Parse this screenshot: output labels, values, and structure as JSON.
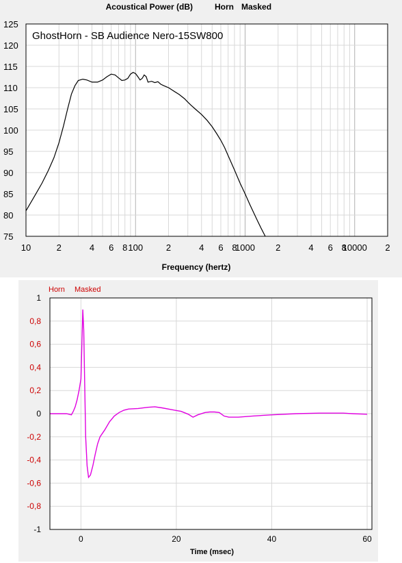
{
  "chart_data": [
    {
      "type": "line",
      "title": "Acoustical Power (dB)",
      "title_tags": [
        "Horn",
        "Masked"
      ],
      "annotation": "GhostHorn - SB Audience Nero-15SW800",
      "xlabel": "Frequency (hertz)",
      "ylabel": "",
      "x_scale": "log",
      "xlim": [
        10,
        20000
      ],
      "ylim": [
        75,
        125
      ],
      "grid": true,
      "x_tick_labels": [
        {
          "x": 10,
          "label": "10"
        },
        {
          "x": 20,
          "label": "2"
        },
        {
          "x": 40,
          "label": "4"
        },
        {
          "x": 60,
          "label": "6"
        },
        {
          "x": 80,
          "label": "8"
        },
        {
          "x": 100,
          "label": "100"
        },
        {
          "x": 200,
          "label": "2"
        },
        {
          "x": 400,
          "label": "4"
        },
        {
          "x": 600,
          "label": "6"
        },
        {
          "x": 800,
          "label": "8"
        },
        {
          "x": 1000,
          "label": "1000"
        },
        {
          "x": 2000,
          "label": "2"
        },
        {
          "x": 4000,
          "label": "4"
        },
        {
          "x": 6000,
          "label": "6"
        },
        {
          "x": 8000,
          "label": "8"
        },
        {
          "x": 10000,
          "label": "10000"
        },
        {
          "x": 20000,
          "label": "2"
        }
      ],
      "y_ticks": [
        75,
        80,
        85,
        90,
        95,
        100,
        105,
        110,
        115,
        120,
        125
      ],
      "line_color": "#000000",
      "series": [
        {
          "x": [
            10,
            12,
            14,
            16,
            18,
            20,
            22,
            24,
            26,
            28,
            30,
            33,
            36,
            40,
            45,
            50,
            55,
            60,
            65,
            70,
            75,
            80,
            85,
            90,
            95,
            100,
            105,
            110,
            115,
            120,
            125,
            130,
            140,
            150,
            160,
            170,
            180,
            200,
            220,
            250,
            280,
            300,
            320,
            350,
            400,
            450,
            500,
            550,
            600,
            650,
            700,
            800,
            900,
            1000,
            1100,
            1200,
            1300,
            1400,
            1500,
            1600
          ],
          "y": [
            81,
            84.5,
            87.5,
            90.5,
            93.5,
            97,
            101,
            105,
            108.5,
            110.5,
            111.7,
            112,
            111.8,
            111.3,
            111.3,
            111.8,
            112.6,
            113.2,
            113,
            112.3,
            111.7,
            111.8,
            112.2,
            113.2,
            113.6,
            113.3,
            112.6,
            111.8,
            112.2,
            113,
            112.6,
            111.3,
            111.5,
            111.2,
            111.4,
            110.8,
            110.5,
            110,
            109.3,
            108.4,
            107.4,
            106.6,
            105.9,
            105,
            103.7,
            102.3,
            100.8,
            99.2,
            97.6,
            95.9,
            94,
            90.6,
            87.5,
            85,
            82.6,
            80.5,
            78.6,
            76.9,
            75.4,
            74
          ]
        }
      ]
    },
    {
      "type": "line",
      "title": "",
      "title_tags": [
        "Horn",
        "Masked"
      ],
      "xlabel": "Time (msec)",
      "ylabel": "",
      "xlim": [
        -6.5,
        61
      ],
      "ylim": [
        -1,
        1
      ],
      "grid": true,
      "x_ticks": [
        0,
        20,
        40,
        60
      ],
      "y_tick_labels": [
        {
          "y": 1,
          "label": "1"
        },
        {
          "y": 0.8,
          "label": "0,8"
        },
        {
          "y": 0.6,
          "label": "0,6"
        },
        {
          "y": 0.4,
          "label": "0,4"
        },
        {
          "y": 0.2,
          "label": "0,2"
        },
        {
          "y": 0,
          "label": "0"
        },
        {
          "y": -0.2,
          "label": "-0,2"
        },
        {
          "y": -0.4,
          "label": "-0,4"
        },
        {
          "y": -0.6,
          "label": "-0,6"
        },
        {
          "y": -0.8,
          "label": "-0,8"
        },
        {
          "y": -1,
          "label": "-1"
        }
      ],
      "label_colors": {
        "red": "#cc0000",
        "black": "#000000"
      },
      "line_color": "#e000e0",
      "series": [
        {
          "x": [
            -6.5,
            -3,
            -2,
            -1.6,
            -1.2,
            -0.8,
            -0.4,
            0,
            0.2,
            0.4,
            0.6,
            0.8,
            1.0,
            1.3,
            1.6,
            2.0,
            2.5,
            3.0,
            3.5,
            4.0,
            5.0,
            6.0,
            7.0,
            8.0,
            9.0,
            10,
            12,
            14,
            15.5,
            17,
            19,
            21,
            22.5,
            23.5,
            24.5,
            26,
            27,
            28,
            29,
            30,
            31,
            33,
            36,
            40,
            45,
            50,
            55,
            57,
            60
          ],
          "y": [
            0,
            0,
            -0.01,
            0.02,
            0.06,
            0.12,
            0.2,
            0.3,
            0.6,
            0.9,
            0.72,
            0.25,
            -0.2,
            -0.45,
            -0.55,
            -0.53,
            -0.45,
            -0.35,
            -0.26,
            -0.2,
            -0.14,
            -0.07,
            -0.02,
            0.01,
            0.03,
            0.04,
            0.045,
            0.055,
            0.06,
            0.05,
            0.035,
            0.02,
            -0.005,
            -0.03,
            -0.01,
            0.01,
            0.015,
            0.015,
            0.01,
            -0.02,
            -0.03,
            -0.03,
            -0.02,
            -0.01,
            0,
            0.005,
            0.005,
            0,
            -0.005
          ]
        }
      ]
    }
  ]
}
